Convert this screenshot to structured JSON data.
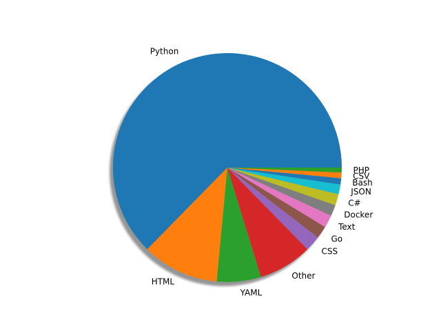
{
  "chart_data": {
    "type": "pie",
    "title": "",
    "shadow": true,
    "start_angle_deg": 0,
    "direction": "counterclockwise",
    "slices": [
      {
        "label": "Python",
        "value": 63.4,
        "color": "#1f77b4"
      },
      {
        "label": "HTML",
        "value": 11.0,
        "color": "#ff7f0e"
      },
      {
        "label": "YAML",
        "value": 6.3,
        "color": "#2ca02c"
      },
      {
        "label": "Other",
        "value": 7.7,
        "color": "#d62728"
      },
      {
        "label": "CSS",
        "value": 2.2,
        "color": "#9467bd"
      },
      {
        "label": "Go",
        "value": 1.8,
        "color": "#8c564b"
      },
      {
        "label": "Text",
        "value": 1.8,
        "color": "#e377c2"
      },
      {
        "label": "Docker",
        "value": 1.6,
        "color": "#7f7f7f"
      },
      {
        "label": "C#",
        "value": 1.6,
        "color": "#bcbd22"
      },
      {
        "label": "JSON",
        "value": 1.4,
        "color": "#17becf"
      },
      {
        "label": "Bash",
        "value": 0.9,
        "color": "#1f77b4"
      },
      {
        "label": "CSV",
        "value": 0.8,
        "color": "#ff7f0e"
      },
      {
        "label": "PHP",
        "value": 0.7,
        "color": "#2ca02c"
      }
    ]
  }
}
